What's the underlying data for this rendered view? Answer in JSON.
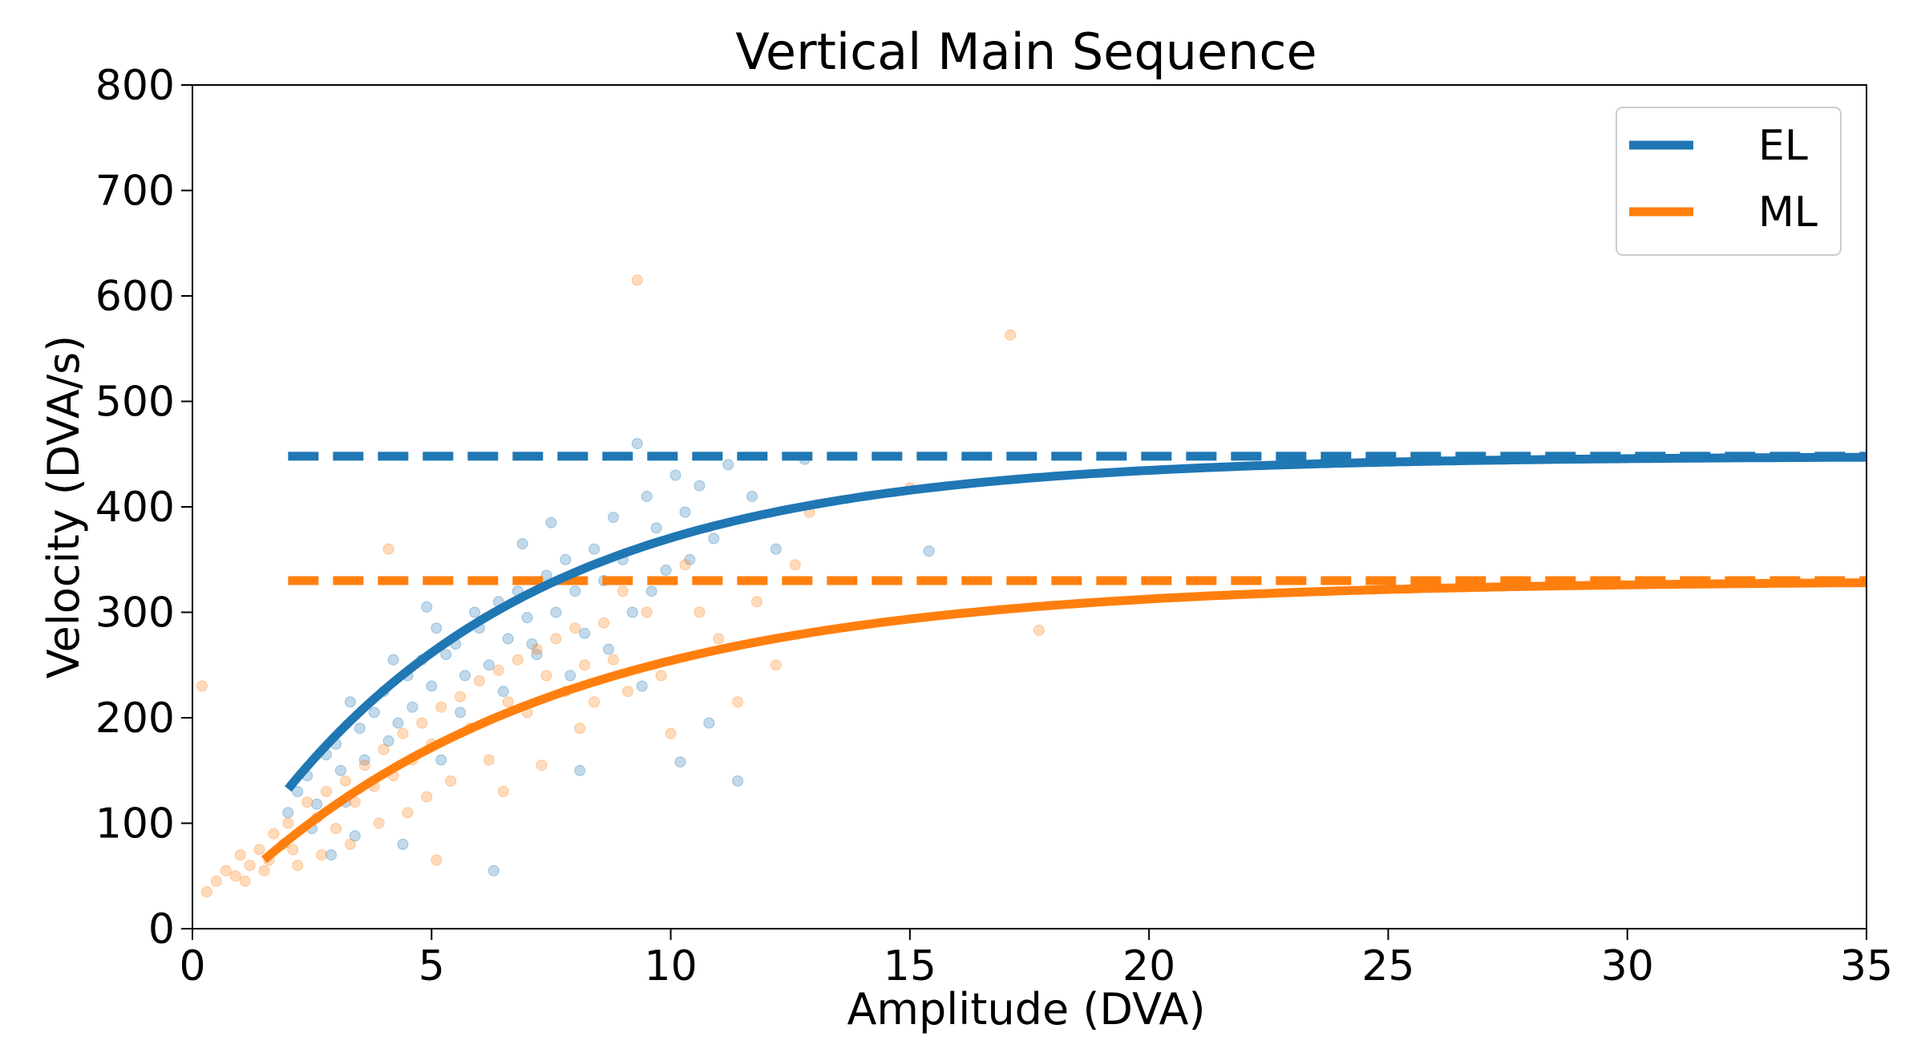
{
  "chart_data": {
    "type": "scatter",
    "title": "Vertical Main Sequence",
    "xlabel": "Amplitude (DVA)",
    "ylabel": "Velocity (DVA/s)",
    "xlim": [
      0,
      35
    ],
    "ylim": [
      0,
      800
    ],
    "xticks": [
      0,
      5,
      10,
      15,
      20,
      25,
      30,
      35
    ],
    "yticks": [
      0,
      100,
      200,
      300,
      400,
      500,
      600,
      700,
      800
    ],
    "xtick_labels": [
      "0",
      "5",
      "10",
      "15",
      "20",
      "25",
      "30",
      "35"
    ],
    "ytick_labels": [
      "0",
      "100",
      "200",
      "300",
      "400",
      "500",
      "600",
      "700",
      "800"
    ],
    "grid": false,
    "legend_position": "top-right",
    "series": [
      {
        "name": "EL",
        "color": "#1f77b4",
        "fit": {
          "model": "exponential",
          "vmax": 448,
          "c": 5.7,
          "x_start": 2,
          "x_end": 35
        },
        "asymptote": {
          "value": 448,
          "x_start": 2,
          "x_end": 35
        },
        "points": [
          [
            2.0,
            110
          ],
          [
            2.2,
            130
          ],
          [
            2.4,
            145
          ],
          [
            2.6,
            118
          ],
          [
            2.8,
            165
          ],
          [
            3.0,
            175
          ],
          [
            3.1,
            150
          ],
          [
            3.3,
            215
          ],
          [
            3.5,
            190
          ],
          [
            3.6,
            160
          ],
          [
            3.8,
            205
          ],
          [
            4.0,
            225
          ],
          [
            4.1,
            178
          ],
          [
            4.3,
            195
          ],
          [
            4.5,
            240
          ],
          [
            4.6,
            210
          ],
          [
            4.8,
            255
          ],
          [
            5.0,
            230
          ],
          [
            5.1,
            285
          ],
          [
            5.3,
            260
          ],
          [
            5.5,
            270
          ],
          [
            5.7,
            240
          ],
          [
            5.9,
            300
          ],
          [
            6.0,
            285
          ],
          [
            6.2,
            250
          ],
          [
            6.4,
            310
          ],
          [
            6.6,
            275
          ],
          [
            6.8,
            320
          ],
          [
            7.0,
            295
          ],
          [
            7.2,
            260
          ],
          [
            7.4,
            335
          ],
          [
            7.6,
            300
          ],
          [
            7.8,
            350
          ],
          [
            8.0,
            320
          ],
          [
            8.2,
            280
          ],
          [
            8.4,
            360
          ],
          [
            8.6,
            330
          ],
          [
            8.8,
            390
          ],
          [
            9.0,
            350
          ],
          [
            9.2,
            300
          ],
          [
            9.3,
            460
          ],
          [
            9.5,
            410
          ],
          [
            9.7,
            380
          ],
          [
            9.9,
            340
          ],
          [
            10.1,
            430
          ],
          [
            10.3,
            395
          ],
          [
            10.6,
            420
          ],
          [
            10.9,
            370
          ],
          [
            11.2,
            440
          ],
          [
            11.4,
            140
          ],
          [
            11.7,
            410
          ],
          [
            12.2,
            360
          ],
          [
            12.8,
            445
          ],
          [
            15.4,
            358
          ],
          [
            3.2,
            120
          ],
          [
            4.4,
            80
          ],
          [
            5.2,
            160
          ],
          [
            6.3,
            55
          ],
          [
            6.9,
            365
          ],
          [
            7.5,
            385
          ],
          [
            8.1,
            150
          ],
          [
            9.4,
            230
          ],
          [
            10.2,
            158
          ],
          [
            10.8,
            195
          ],
          [
            2.5,
            95
          ],
          [
            2.9,
            70
          ],
          [
            3.4,
            88
          ],
          [
            4.2,
            255
          ],
          [
            4.9,
            305
          ],
          [
            5.6,
            205
          ],
          [
            6.5,
            225
          ],
          [
            7.1,
            270
          ],
          [
            7.9,
            240
          ],
          [
            8.7,
            265
          ],
          [
            9.6,
            320
          ],
          [
            10.4,
            350
          ]
        ]
      },
      {
        "name": "ML",
        "color": "#ff7f0e",
        "fit": {
          "model": "exponential",
          "vmax": 330,
          "c": 6.8,
          "x_start": 1.5,
          "x_end": 35
        },
        "asymptote": {
          "value": 330,
          "x_start": 2,
          "x_end": 35
        },
        "points": [
          [
            0.2,
            230
          ],
          [
            0.3,
            35
          ],
          [
            0.5,
            45
          ],
          [
            0.7,
            55
          ],
          [
            0.9,
            50
          ],
          [
            1.0,
            70
          ],
          [
            1.2,
            60
          ],
          [
            1.4,
            75
          ],
          [
            1.5,
            55
          ],
          [
            1.7,
            90
          ],
          [
            1.9,
            80
          ],
          [
            2.0,
            100
          ],
          [
            2.2,
            60
          ],
          [
            2.4,
            120
          ],
          [
            2.6,
            105
          ],
          [
            2.8,
            130
          ],
          [
            3.0,
            95
          ],
          [
            3.2,
            140
          ],
          [
            3.4,
            120
          ],
          [
            3.6,
            155
          ],
          [
            3.8,
            135
          ],
          [
            4.0,
            170
          ],
          [
            4.1,
            360
          ],
          [
            4.2,
            145
          ],
          [
            4.4,
            185
          ],
          [
            4.6,
            160
          ],
          [
            4.8,
            195
          ],
          [
            5.0,
            175
          ],
          [
            5.2,
            210
          ],
          [
            5.4,
            140
          ],
          [
            5.6,
            220
          ],
          [
            5.8,
            190
          ],
          [
            6.0,
            235
          ],
          [
            6.2,
            160
          ],
          [
            6.4,
            245
          ],
          [
            6.6,
            215
          ],
          [
            6.8,
            255
          ],
          [
            7.0,
            205
          ],
          [
            7.2,
            265
          ],
          [
            7.4,
            240
          ],
          [
            7.6,
            275
          ],
          [
            7.8,
            225
          ],
          [
            8.0,
            285
          ],
          [
            8.2,
            250
          ],
          [
            8.4,
            215
          ],
          [
            8.6,
            290
          ],
          [
            8.8,
            255
          ],
          [
            9.0,
            320
          ],
          [
            9.3,
            615
          ],
          [
            9.5,
            300
          ],
          [
            9.8,
            240
          ],
          [
            10.0,
            185
          ],
          [
            10.3,
            345
          ],
          [
            10.6,
            300
          ],
          [
            11.0,
            275
          ],
          [
            11.4,
            215
          ],
          [
            11.8,
            310
          ],
          [
            12.2,
            250
          ],
          [
            12.6,
            345
          ],
          [
            12.9,
            395
          ],
          [
            15.0,
            418
          ],
          [
            17.1,
            563
          ],
          [
            17.7,
            283
          ],
          [
            2.7,
            70
          ],
          [
            3.3,
            80
          ],
          [
            4.5,
            110
          ],
          [
            5.1,
            65
          ],
          [
            6.5,
            130
          ],
          [
            7.3,
            155
          ],
          [
            8.1,
            190
          ],
          [
            9.1,
            225
          ],
          [
            1.1,
            45
          ],
          [
            1.6,
            65
          ],
          [
            2.1,
            75
          ],
          [
            3.9,
            100
          ],
          [
            4.9,
            125
          ]
        ]
      }
    ]
  }
}
